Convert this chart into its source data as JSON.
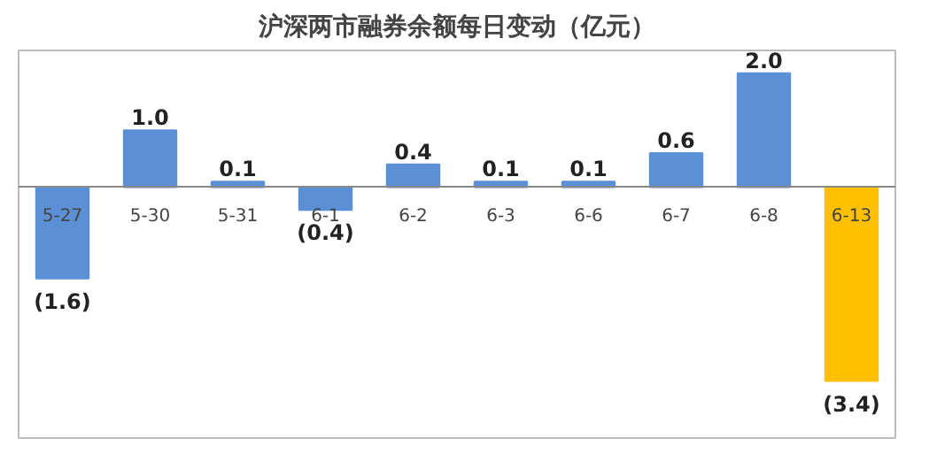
{
  "chart_data": {
    "type": "bar",
    "title": "沪深两市融券余额每日变动（亿元）",
    "categories": [
      "5-27",
      "5-30",
      "5-31",
      "6-1",
      "6-2",
      "6-3",
      "6-6",
      "6-7",
      "6-8",
      "6-13"
    ],
    "values": [
      -1.6,
      1.0,
      0.1,
      -0.4,
      0.4,
      0.1,
      0.1,
      0.6,
      2.0,
      -3.4
    ],
    "value_labels": [
      "(1.6)",
      "1.0",
      "0.1",
      "(0.4)",
      "0.4",
      "0.1",
      "0.1",
      "0.6",
      "2.0",
      "(3.4)"
    ],
    "colors": [
      "#5b8fd6",
      "#5b8fd6",
      "#5b8fd6",
      "#5b8fd6",
      "#5b8fd6",
      "#5b8fd6",
      "#5b8fd6",
      "#5b8fd6",
      "#5b8fd6",
      "#ffc000"
    ],
    "ylim": [
      -4.4,
      2.4
    ],
    "grid": false
  }
}
